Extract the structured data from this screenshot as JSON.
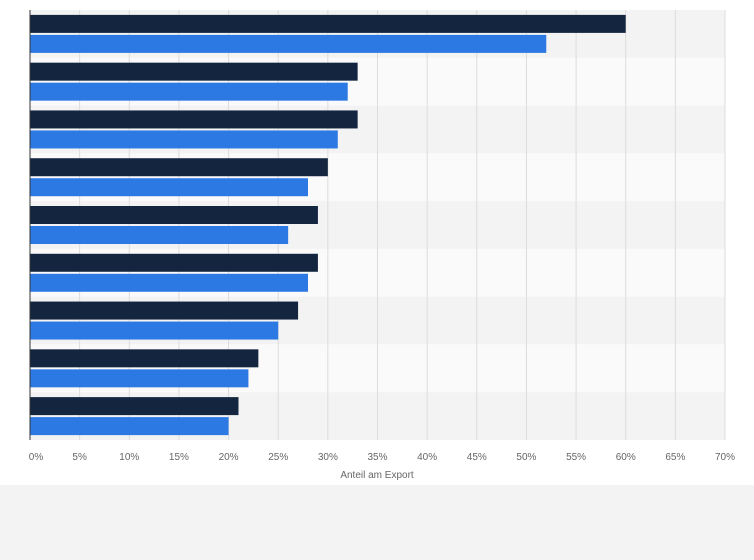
{
  "chart_data": {
    "type": "bar",
    "orientation": "horizontal",
    "title": "",
    "xlabel": "Anteil am Export",
    "ylabel": "",
    "x_tick_labels": [
      "0%",
      "5%",
      "10%",
      "15%",
      "20%",
      "25%",
      "30%",
      "35%",
      "40%",
      "45%",
      "50%",
      "55%",
      "60%",
      "65%",
      "70%"
    ],
    "xlim": [
      0,
      70
    ],
    "grid": true,
    "category_count": 9,
    "series": [
      {
        "color": "#14263f",
        "values": [
          60,
          33,
          33,
          30,
          29,
          29,
          27,
          23,
          21
        ]
      },
      {
        "color": "#2d79e3",
        "values": [
          52,
          32,
          31,
          28,
          26,
          28,
          25,
          22,
          20
        ]
      }
    ]
  }
}
